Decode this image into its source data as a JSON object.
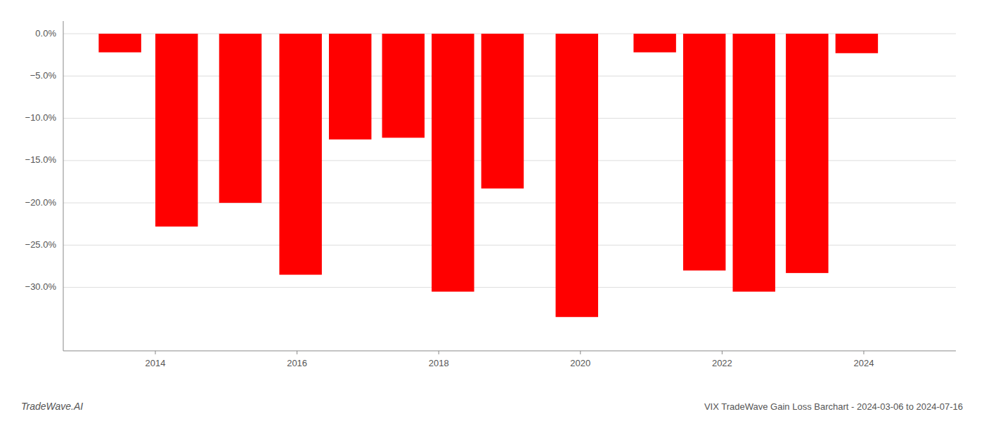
{
  "chart_data": {
    "type": "bar",
    "title": "VIX TradeWave Gain Loss Barchart - 2024-03-06 to 2024-07-16",
    "annotations": [
      "TradeWave.AI"
    ],
    "x": [
      2013.5,
      2014.3,
      2015.2,
      2016.05,
      2016.75,
      2017.5,
      2018.2,
      2018.9,
      2019.95,
      2021.05,
      2021.75,
      2022.45,
      2023.2,
      2023.9
    ],
    "values": [
      -0.022,
      -0.228,
      -0.2,
      -0.285,
      -0.125,
      -0.123,
      -0.305,
      -0.183,
      -0.335,
      -0.022,
      -0.28,
      -0.305,
      -0.283,
      -0.023
    ],
    "color": "#ff0000",
    "xlim": [
      2012.7,
      2025.3
    ],
    "xticks": [
      2014,
      2016,
      2018,
      2020,
      2022,
      2024
    ],
    "ylim": [
      -0.375,
      0.015
    ],
    "yticks": [
      {
        "value": 0.0,
        "label": "0.0%"
      },
      {
        "value": -0.05,
        "label": "−5.0%"
      },
      {
        "value": -0.1,
        "label": "−10.0%"
      },
      {
        "value": -0.15,
        "label": "−15.0%"
      },
      {
        "value": -0.2,
        "label": "−20.0%"
      },
      {
        "value": -0.25,
        "label": "−25.0%"
      },
      {
        "value": -0.3,
        "label": "−30.0%"
      }
    ],
    "grid": true
  }
}
